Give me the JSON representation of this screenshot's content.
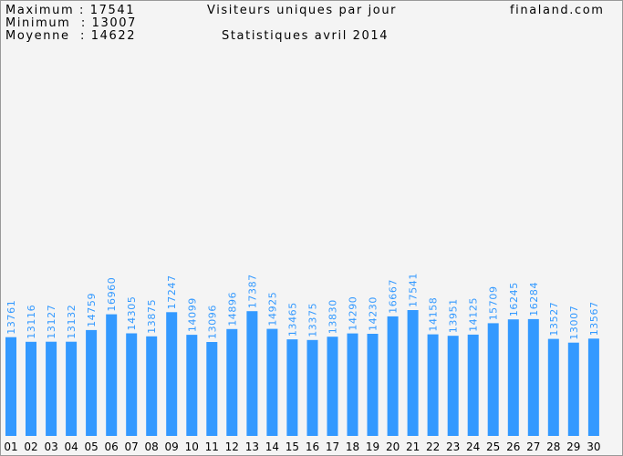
{
  "header": {
    "max_label": "Maximum",
    "max_value": "17541",
    "min_label": "Minimum",
    "min_value": "13007",
    "avg_label": "Moyenne",
    "avg_value": "14622",
    "title": "Visiteurs uniques par jour",
    "subtitle": "Statistiques avril 2014",
    "site": "finaland.com"
  },
  "colors": {
    "bar": "#3399ff",
    "value_text": "#3399ff",
    "background": "#f4f4f4",
    "border": "#9a9a9a"
  },
  "chart_data": {
    "type": "bar",
    "title": "Visiteurs uniques par jour",
    "subtitle": "Statistiques avril 2014",
    "categories": [
      "01",
      "02",
      "03",
      "04",
      "05",
      "06",
      "07",
      "08",
      "09",
      "10",
      "11",
      "12",
      "13",
      "14",
      "15",
      "16",
      "17",
      "18",
      "19",
      "20",
      "21",
      "22",
      "23",
      "24",
      "25",
      "26",
      "27",
      "28",
      "29",
      "30"
    ],
    "values": [
      13761,
      13116,
      13127,
      13132,
      14759,
      16960,
      14305,
      13875,
      17247,
      14099,
      13096,
      14896,
      17387,
      14925,
      13465,
      13375,
      13830,
      14290,
      14230,
      16667,
      17541,
      14158,
      13951,
      14125,
      15709,
      16245,
      16284,
      13527,
      13007,
      13567
    ],
    "ylim": [
      0,
      17541
    ],
    "grid": false,
    "data_labels": true
  }
}
